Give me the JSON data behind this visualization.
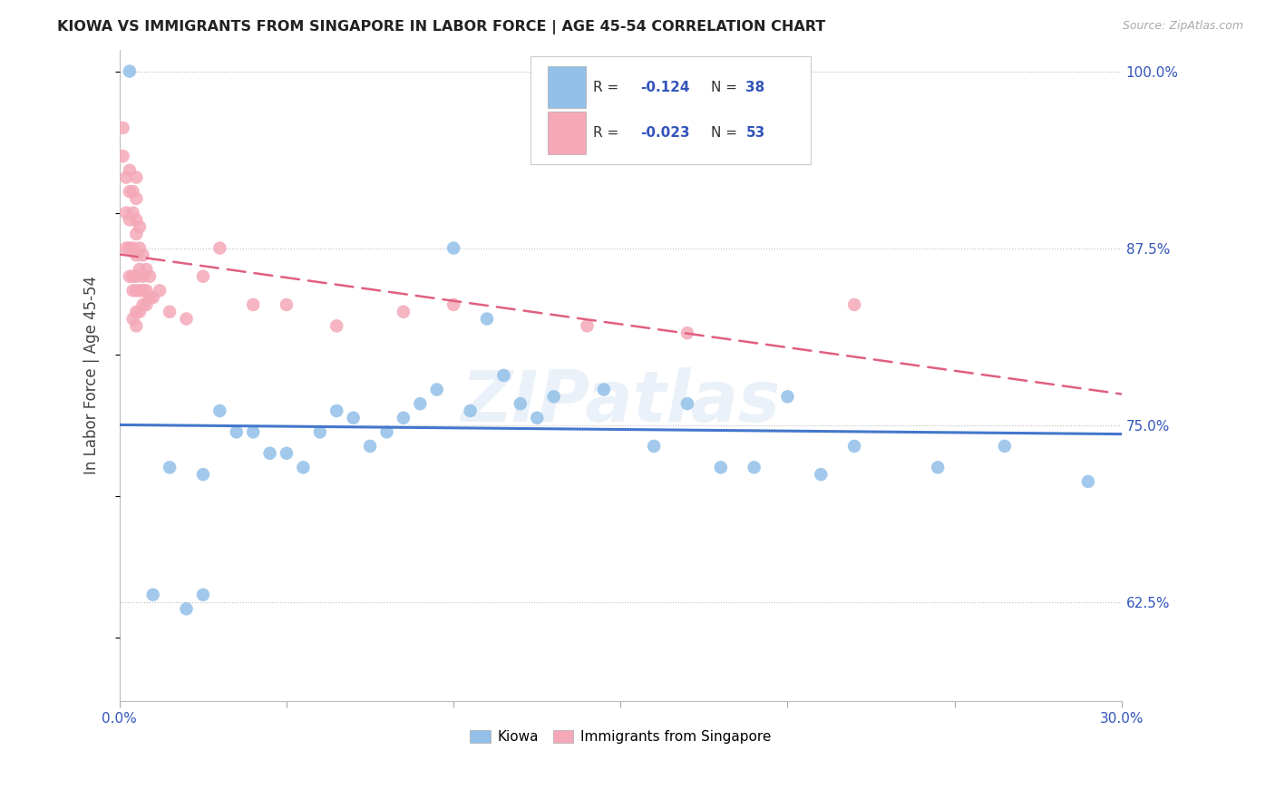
{
  "title": "KIOWA VS IMMIGRANTS FROM SINGAPORE IN LABOR FORCE | AGE 45-54 CORRELATION CHART",
  "source": "Source: ZipAtlas.com",
  "ylabel": "In Labor Force | Age 45-54",
  "xlim": [
    0.0,
    0.3
  ],
  "ylim": [
    0.555,
    1.015
  ],
  "yticks_right": [
    0.625,
    0.75,
    0.875,
    1.0
  ],
  "ytick_labels_right": [
    "62.5%",
    "75.0%",
    "87.5%",
    "100.0%"
  ],
  "blue_R": -0.124,
  "blue_N": 38,
  "pink_R": -0.023,
  "pink_N": 53,
  "blue_color": "#92C0E8",
  "pink_color": "#F4A8B8",
  "blue_line_color": "#4477CC",
  "pink_line_color": "#E06080",
  "watermark": "ZIPatlas",
  "legend_label_blue": "Kiowa",
  "legend_label_pink": "Immigrants from Singapore",
  "blue_scatter_x": [
    0.003,
    0.01,
    0.015,
    0.02,
    0.025,
    0.025,
    0.03,
    0.035,
    0.04,
    0.045,
    0.05,
    0.055,
    0.06,
    0.065,
    0.07,
    0.075,
    0.08,
    0.085,
    0.09,
    0.095,
    0.1,
    0.105,
    0.11,
    0.115,
    0.12,
    0.125,
    0.13,
    0.145,
    0.16,
    0.17,
    0.18,
    0.19,
    0.2,
    0.21,
    0.22,
    0.245,
    0.265,
    0.29
  ],
  "blue_scatter_y": [
    1.0,
    0.63,
    0.72,
    0.62,
    0.63,
    0.715,
    0.76,
    0.745,
    0.745,
    0.73,
    0.73,
    0.72,
    0.745,
    0.76,
    0.755,
    0.735,
    0.745,
    0.755,
    0.765,
    0.775,
    0.875,
    0.76,
    0.825,
    0.785,
    0.765,
    0.755,
    0.77,
    0.775,
    0.735,
    0.765,
    0.72,
    0.72,
    0.77,
    0.715,
    0.735,
    0.72,
    0.735,
    0.71
  ],
  "pink_scatter_x": [
    0.001,
    0.001,
    0.002,
    0.002,
    0.002,
    0.003,
    0.003,
    0.003,
    0.003,
    0.003,
    0.004,
    0.004,
    0.004,
    0.004,
    0.004,
    0.004,
    0.005,
    0.005,
    0.005,
    0.005,
    0.005,
    0.005,
    0.005,
    0.005,
    0.005,
    0.006,
    0.006,
    0.006,
    0.006,
    0.006,
    0.007,
    0.007,
    0.007,
    0.007,
    0.008,
    0.008,
    0.008,
    0.009,
    0.009,
    0.01,
    0.012,
    0.015,
    0.02,
    0.025,
    0.03,
    0.04,
    0.05,
    0.065,
    0.085,
    0.1,
    0.14,
    0.17,
    0.22
  ],
  "pink_scatter_y": [
    0.94,
    0.96,
    0.875,
    0.9,
    0.925,
    0.855,
    0.875,
    0.895,
    0.915,
    0.93,
    0.825,
    0.845,
    0.855,
    0.875,
    0.9,
    0.915,
    0.82,
    0.83,
    0.845,
    0.855,
    0.87,
    0.885,
    0.895,
    0.91,
    0.925,
    0.83,
    0.845,
    0.86,
    0.875,
    0.89,
    0.835,
    0.845,
    0.855,
    0.87,
    0.835,
    0.845,
    0.86,
    0.84,
    0.855,
    0.84,
    0.845,
    0.83,
    0.825,
    0.855,
    0.875,
    0.835,
    0.835,
    0.82,
    0.83,
    0.835,
    0.82,
    0.815,
    0.835
  ]
}
